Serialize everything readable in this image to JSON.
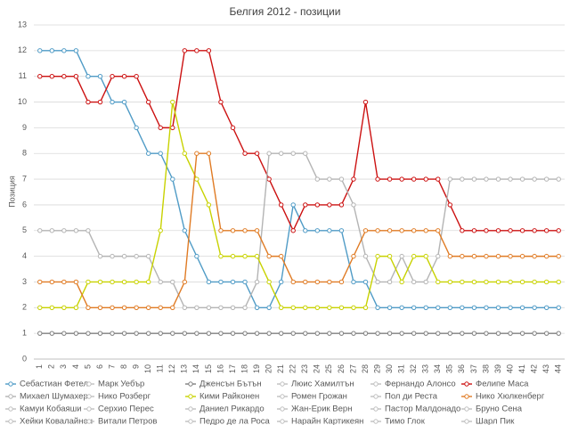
{
  "chart_data": {
    "type": "line",
    "title": "Белгия 2012 - позиции",
    "y_label": "Позиция",
    "categories": [
      "1",
      "2",
      "3",
      "4",
      "5",
      "6",
      "7",
      "8",
      "9",
      "10",
      "11",
      "12",
      "13",
      "14",
      "15",
      "16",
      "17",
      "18",
      "19",
      "20",
      "21",
      "22",
      "23",
      "24",
      "25",
      "26",
      "27",
      "28",
      "29",
      "30",
      "31",
      "32",
      "33",
      "34",
      "35",
      "36",
      "37",
      "38",
      "39",
      "40",
      "41",
      "42",
      "43",
      "44"
    ],
    "ylim": [
      0,
      13
    ],
    "yticks": [
      0,
      1,
      2,
      3,
      4,
      5,
      6,
      7,
      8,
      9,
      10,
      11,
      12,
      13
    ],
    "grid": true,
    "legend": "bottom",
    "series": [
      {
        "name": "Себастиан Фетел",
        "color": "#4f9bc6",
        "values": [
          12,
          12,
          12,
          12,
          11,
          11,
          10,
          10,
          9,
          8,
          8,
          7,
          5,
          4,
          3,
          3,
          3,
          3,
          2,
          2,
          3,
          6,
          5,
          5,
          5,
          5,
          3,
          3,
          2,
          2,
          2,
          2,
          2,
          2,
          2,
          2,
          2,
          2,
          2,
          2,
          2,
          2,
          2,
          2
        ]
      },
      {
        "name": "Марк Уебър",
        "color": "#c0c0c0",
        "values": [
          null,
          null,
          null,
          null,
          null,
          null,
          null,
          null,
          null,
          null,
          null,
          null,
          null,
          null,
          null,
          null,
          null,
          null,
          null,
          null,
          null,
          null,
          null,
          null,
          null,
          null,
          null,
          null,
          null,
          null,
          null,
          null,
          null,
          null,
          null,
          null,
          null,
          null,
          null,
          null,
          null,
          null,
          null,
          null
        ]
      },
      {
        "name": "Дженсън Бътън",
        "color": "#7f7f7f",
        "values": [
          1,
          1,
          1,
          1,
          1,
          1,
          1,
          1,
          1,
          1,
          1,
          1,
          1,
          1,
          1,
          1,
          1,
          1,
          1,
          1,
          1,
          1,
          1,
          1,
          1,
          1,
          1,
          1,
          1,
          1,
          1,
          1,
          1,
          1,
          1,
          1,
          1,
          1,
          1,
          1,
          1,
          1,
          1,
          1
        ]
      },
      {
        "name": "Люис Хамилтън",
        "color": "#c0c0c0",
        "values": [
          null,
          null,
          null,
          null,
          null,
          null,
          null,
          null,
          null,
          null,
          null,
          null,
          null,
          null,
          null,
          null,
          null,
          null,
          null,
          null,
          null,
          null,
          null,
          null,
          null,
          null,
          null,
          null,
          null,
          null,
          null,
          null,
          null,
          null,
          null,
          null,
          null,
          null,
          null,
          null,
          null,
          null,
          null,
          null
        ]
      },
      {
        "name": "Фернандо Алонсо",
        "color": "#c0c0c0",
        "values": [
          null,
          null,
          null,
          null,
          null,
          null,
          null,
          null,
          null,
          null,
          null,
          null,
          null,
          null,
          null,
          null,
          null,
          null,
          null,
          null,
          null,
          null,
          null,
          null,
          null,
          null,
          null,
          null,
          null,
          null,
          null,
          null,
          null,
          null,
          null,
          null,
          null,
          null,
          null,
          null,
          null,
          null,
          null,
          null
        ]
      },
      {
        "name": "Фелипе Маса",
        "color": "#cc1111",
        "values": [
          11,
          11,
          11,
          11,
          10,
          10,
          11,
          11,
          11,
          10,
          9,
          9,
          12,
          12,
          12,
          10,
          9,
          8,
          8,
          7,
          6,
          5,
          6,
          6,
          6,
          6,
          7,
          10,
          7,
          7,
          7,
          7,
          7,
          7,
          6,
          5,
          5,
          5,
          5,
          5,
          5,
          5,
          5,
          5
        ]
      },
      {
        "name": "Михаел Шумахер",
        "color": "#b4b4b4",
        "values": [
          5,
          5,
          5,
          5,
          5,
          4,
          4,
          4,
          4,
          4,
          3,
          3,
          2,
          2,
          2,
          2,
          2,
          2,
          3,
          8,
          8,
          8,
          8,
          7,
          7,
          7,
          6,
          4,
          3,
          3,
          4,
          3,
          3,
          4,
          7,
          7,
          7,
          7,
          7,
          7,
          7,
          7,
          7,
          7
        ]
      },
      {
        "name": "Нико Розберг",
        "color": "#c0c0c0",
        "values": [
          null,
          null,
          null,
          null,
          null,
          null,
          null,
          null,
          null,
          null,
          null,
          null,
          null,
          null,
          null,
          null,
          null,
          null,
          null,
          null,
          null,
          null,
          null,
          null,
          null,
          null,
          null,
          null,
          null,
          null,
          null,
          null,
          null,
          null,
          null,
          null,
          null,
          null,
          null,
          null,
          null,
          null,
          null,
          null
        ]
      },
      {
        "name": "Кими Райконен",
        "color": "#c8d200",
        "values": [
          2,
          2,
          2,
          2,
          3,
          3,
          3,
          3,
          3,
          3,
          5,
          10,
          8,
          7,
          6,
          4,
          4,
          4,
          4,
          3,
          2,
          2,
          2,
          2,
          2,
          2,
          2,
          2,
          4,
          4,
          3,
          4,
          4,
          3,
          3,
          3,
          3,
          3,
          3,
          3,
          3,
          3,
          3,
          3
        ]
      },
      {
        "name": "Ромен Грожан",
        "color": "#c0c0c0",
        "values": [
          null,
          null,
          null,
          null,
          null,
          null,
          null,
          null,
          null,
          null,
          null,
          null,
          null,
          null,
          null,
          null,
          null,
          null,
          null,
          null,
          null,
          null,
          null,
          null,
          null,
          null,
          null,
          null,
          null,
          null,
          null,
          null,
          null,
          null,
          null,
          null,
          null,
          null,
          null,
          null,
          null,
          null,
          null,
          null
        ]
      },
      {
        "name": "Пол ди Реста",
        "color": "#c0c0c0",
        "values": [
          null,
          null,
          null,
          null,
          null,
          null,
          null,
          null,
          null,
          null,
          null,
          null,
          null,
          null,
          null,
          null,
          null,
          null,
          null,
          null,
          null,
          null,
          null,
          null,
          null,
          null,
          null,
          null,
          null,
          null,
          null,
          null,
          null,
          null,
          null,
          null,
          null,
          null,
          null,
          null,
          null,
          null,
          null,
          null
        ]
      },
      {
        "name": "Нико Хюлкенберг",
        "color": "#e07b24",
        "values": [
          3,
          3,
          3,
          3,
          2,
          2,
          2,
          2,
          2,
          2,
          2,
          2,
          3,
          8,
          8,
          5,
          5,
          5,
          5,
          4,
          4,
          3,
          3,
          3,
          3,
          3,
          4,
          5,
          5,
          5,
          5,
          5,
          5,
          5,
          4,
          4,
          4,
          4,
          4,
          4,
          4,
          4,
          4,
          4
        ]
      },
      {
        "name": "Камуи Кобаяши",
        "color": "#c0c0c0",
        "values": [
          null,
          null,
          null,
          null,
          null,
          null,
          null,
          null,
          null,
          null,
          null,
          null,
          null,
          null,
          null,
          null,
          null,
          null,
          null,
          null,
          null,
          null,
          null,
          null,
          null,
          null,
          null,
          null,
          null,
          null,
          null,
          null,
          null,
          null,
          null,
          null,
          null,
          null,
          null,
          null,
          null,
          null,
          null,
          null
        ]
      },
      {
        "name": "Серхио Перес",
        "color": "#c0c0c0",
        "values": [
          null,
          null,
          null,
          null,
          null,
          null,
          null,
          null,
          null,
          null,
          null,
          null,
          null,
          null,
          null,
          null,
          null,
          null,
          null,
          null,
          null,
          null,
          null,
          null,
          null,
          null,
          null,
          null,
          null,
          null,
          null,
          null,
          null,
          null,
          null,
          null,
          null,
          null,
          null,
          null,
          null,
          null,
          null,
          null
        ]
      },
      {
        "name": "Даниел Рикардо",
        "color": "#c0c0c0",
        "values": [
          null,
          null,
          null,
          null,
          null,
          null,
          null,
          null,
          null,
          null,
          null,
          null,
          null,
          null,
          null,
          null,
          null,
          null,
          null,
          null,
          null,
          null,
          null,
          null,
          null,
          null,
          null,
          null,
          null,
          null,
          null,
          null,
          null,
          null,
          null,
          null,
          null,
          null,
          null,
          null,
          null,
          null,
          null,
          null
        ]
      },
      {
        "name": "Жан-Ерик Верн",
        "color": "#c0c0c0",
        "values": [
          null,
          null,
          null,
          null,
          null,
          null,
          null,
          null,
          null,
          null,
          null,
          null,
          null,
          null,
          null,
          null,
          null,
          null,
          null,
          null,
          null,
          null,
          null,
          null,
          null,
          null,
          null,
          null,
          null,
          null,
          null,
          null,
          null,
          null,
          null,
          null,
          null,
          null,
          null,
          null,
          null,
          null,
          null,
          null
        ]
      },
      {
        "name": "Пастор Малдонадо",
        "color": "#c0c0c0",
        "values": [
          null,
          null,
          null,
          null,
          null,
          null,
          null,
          null,
          null,
          null,
          null,
          null,
          null,
          null,
          null,
          null,
          null,
          null,
          null,
          null,
          null,
          null,
          null,
          null,
          null,
          null,
          null,
          null,
          null,
          null,
          null,
          null,
          null,
          null,
          null,
          null,
          null,
          null,
          null,
          null,
          null,
          null,
          null,
          null
        ]
      },
      {
        "name": "Бруно Сена",
        "color": "#c0c0c0",
        "values": [
          null,
          null,
          null,
          null,
          null,
          null,
          null,
          null,
          null,
          null,
          null,
          null,
          null,
          null,
          null,
          null,
          null,
          null,
          null,
          null,
          null,
          null,
          null,
          null,
          null,
          null,
          null,
          null,
          null,
          null,
          null,
          null,
          null,
          null,
          null,
          null,
          null,
          null,
          null,
          null,
          null,
          null,
          null,
          null
        ]
      },
      {
        "name": "Хейки Ковалайнен",
        "color": "#c0c0c0",
        "values": [
          null,
          null,
          null,
          null,
          null,
          null,
          null,
          null,
          null,
          null,
          null,
          null,
          null,
          null,
          null,
          null,
          null,
          null,
          null,
          null,
          null,
          null,
          null,
          null,
          null,
          null,
          null,
          null,
          null,
          null,
          null,
          null,
          null,
          null,
          null,
          null,
          null,
          null,
          null,
          null,
          null,
          null,
          null,
          null
        ]
      },
      {
        "name": "Витали Петров",
        "color": "#c0c0c0",
        "values": [
          null,
          null,
          null,
          null,
          null,
          null,
          null,
          null,
          null,
          null,
          null,
          null,
          null,
          null,
          null,
          null,
          null,
          null,
          null,
          null,
          null,
          null,
          null,
          null,
          null,
          null,
          null,
          null,
          null,
          null,
          null,
          null,
          null,
          null,
          null,
          null,
          null,
          null,
          null,
          null,
          null,
          null,
          null,
          null
        ]
      },
      {
        "name": "Педро де ла Роса",
        "color": "#c0c0c0",
        "values": [
          null,
          null,
          null,
          null,
          null,
          null,
          null,
          null,
          null,
          null,
          null,
          null,
          null,
          null,
          null,
          null,
          null,
          null,
          null,
          null,
          null,
          null,
          null,
          null,
          null,
          null,
          null,
          null,
          null,
          null,
          null,
          null,
          null,
          null,
          null,
          null,
          null,
          null,
          null,
          null,
          null,
          null,
          null,
          null
        ]
      },
      {
        "name": "Нарайн Картикеян",
        "color": "#c0c0c0",
        "values": [
          null,
          null,
          null,
          null,
          null,
          null,
          null,
          null,
          null,
          null,
          null,
          null,
          null,
          null,
          null,
          null,
          null,
          null,
          null,
          null,
          null,
          null,
          null,
          null,
          null,
          null,
          null,
          null,
          null,
          null,
          null,
          null,
          null,
          null,
          null,
          null,
          null,
          null,
          null,
          null,
          null,
          null,
          null,
          null
        ]
      },
      {
        "name": "Тимо Глок",
        "color": "#c0c0c0",
        "values": [
          null,
          null,
          null,
          null,
          null,
          null,
          null,
          null,
          null,
          null,
          null,
          null,
          null,
          null,
          null,
          null,
          null,
          null,
          null,
          null,
          null,
          null,
          null,
          null,
          null,
          null,
          null,
          null,
          null,
          null,
          null,
          null,
          null,
          null,
          null,
          null,
          null,
          null,
          null,
          null,
          null,
          null,
          null,
          null
        ]
      },
      {
        "name": "Шарл Пик",
        "color": "#c0c0c0",
        "values": [
          null,
          null,
          null,
          null,
          null,
          null,
          null,
          null,
          null,
          null,
          null,
          null,
          null,
          null,
          null,
          null,
          null,
          null,
          null,
          null,
          null,
          null,
          null,
          null,
          null,
          null,
          null,
          null,
          null,
          null,
          null,
          null,
          null,
          null,
          null,
          null,
          null,
          null,
          null,
          null,
          null,
          null,
          null,
          null
        ]
      }
    ]
  }
}
